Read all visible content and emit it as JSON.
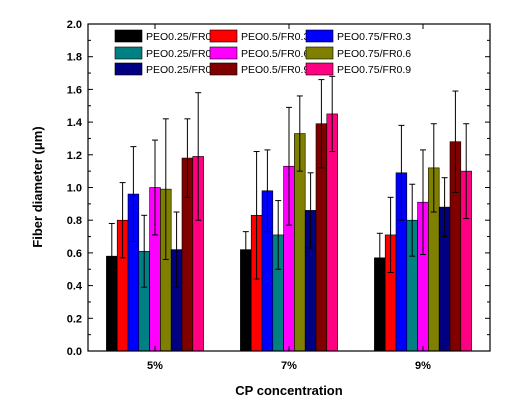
{
  "chart_data": {
    "type": "bar",
    "xlabel": "CP concentration",
    "ylabel": "Fiber diameter (μm)",
    "ylim": [
      0,
      2.0
    ],
    "yticks": [
      "0.0",
      "0.2",
      "0.4",
      "0.6",
      "0.8",
      "1.0",
      "1.2",
      "1.4",
      "1.6",
      "1.8",
      "2.0"
    ],
    "categories": [
      "5%",
      "7%",
      "9%"
    ],
    "legend_position": "top",
    "grid": false,
    "series": [
      {
        "name": "PEO0.25/FR0.3",
        "color": "#000000",
        "values": [
          0.58,
          0.62,
          0.57
        ],
        "errors": [
          0.2,
          0.11,
          0.15
        ]
      },
      {
        "name": "PEO0.5/FR0.3",
        "color": "#ff0000",
        "values": [
          0.8,
          0.83,
          0.71
        ],
        "errors": [
          0.23,
          0.39,
          0.23
        ]
      },
      {
        "name": "PEO0.75/FR0.3",
        "color": "#0000ff",
        "values": [
          0.96,
          0.98,
          1.09
        ],
        "errors": [
          0.29,
          0.25,
          0.29
        ]
      },
      {
        "name": "PEO0.25/FR0.6",
        "color": "#008080",
        "values": [
          0.61,
          0.71,
          0.8
        ],
        "errors": [
          0.22,
          0.21,
          0.22
        ]
      },
      {
        "name": "PEO0.5/FR0.6",
        "color": "#ff00ff",
        "values": [
          1.0,
          1.13,
          0.91
        ],
        "errors": [
          0.29,
          0.36,
          0.32
        ]
      },
      {
        "name": "PEO0.75/FR0.6",
        "color": "#808000",
        "values": [
          0.99,
          1.33,
          1.12
        ],
        "errors": [
          0.43,
          0.23,
          0.27
        ]
      },
      {
        "name": "PEO0.25/FR0.9",
        "color": "#000080",
        "values": [
          0.62,
          0.86,
          0.88
        ],
        "errors": [
          0.23,
          0.23,
          0.18
        ]
      },
      {
        "name": "PEO0.5/FR0.9",
        "color": "#800000",
        "values": [
          1.18,
          1.39,
          1.28
        ],
        "errors": [
          0.24,
          0.27,
          0.31
        ]
      },
      {
        "name": "PEO0.75/FR0.9",
        "color": "#ff0080",
        "values": [
          1.19,
          1.45,
          1.1
        ],
        "errors": [
          0.39,
          0.23,
          0.29
        ]
      }
    ]
  }
}
